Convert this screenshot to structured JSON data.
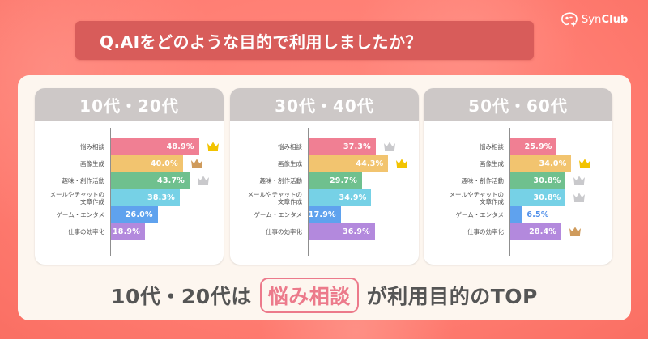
{
  "brand": {
    "logo_text_light": "Syn",
    "logo_text_bold": "Club"
  },
  "title": "Q.AIをどのような目的で利用しましたか？",
  "colors": {
    "background": "#ff7d72",
    "banner": "#d85c5a",
    "card": "#fdf6ef",
    "panel_header": "#cdc8c7",
    "highlight": "#ec7a8b",
    "crown_gold": "#f2c300",
    "crown_silver": "#c9c9cc",
    "crown_bronze": "#cf9b5c"
  },
  "panels": [
    {
      "title": "10代・20代",
      "rows": [
        {
          "label": [
            "悩み相談"
          ],
          "value": 48.9,
          "value_label": "48.9%",
          "color": "#f07f93",
          "crown": "gold"
        },
        {
          "label": [
            "画像生成"
          ],
          "value": 40.0,
          "value_label": "40.0%",
          "color": "#f2c46f",
          "crown": "bronze"
        },
        {
          "label": [
            "趣味・創作活動"
          ],
          "value": 43.7,
          "value_label": "43.7%",
          "color": "#6fc08e",
          "crown": "silver"
        },
        {
          "label": [
            "メールやチャットの",
            "文章作成"
          ],
          "value": 38.3,
          "value_label": "38.3%",
          "color": "#76d1e6",
          "crown": null
        },
        {
          "label": [
            "ゲーム・エンタメ"
          ],
          "value": 26.0,
          "value_label": "26.0%",
          "color": "#5fa2ee",
          "crown": null
        },
        {
          "label": [
            "仕事の効率化"
          ],
          "value": 18.9,
          "value_label": "18.9%",
          "color": "#b389dd",
          "crown": null
        }
      ]
    },
    {
      "title": "30代・40代",
      "rows": [
        {
          "label": [
            "悩み相談"
          ],
          "value": 37.3,
          "value_label": "37.3%",
          "color": "#f07f93",
          "crown": "silver"
        },
        {
          "label": [
            "画像生成"
          ],
          "value": 44.3,
          "value_label": "44.3%",
          "color": "#f2c46f",
          "crown": "gold"
        },
        {
          "label": [
            "趣味・創作活動"
          ],
          "value": 29.7,
          "value_label": "29.7%",
          "color": "#6fc08e",
          "crown": null
        },
        {
          "label": [
            "メールやチャットの",
            "文章作成"
          ],
          "value": 34.9,
          "value_label": "34.9%",
          "color": "#76d1e6",
          "crown": null
        },
        {
          "label": [
            "ゲーム・エンタメ"
          ],
          "value": 17.9,
          "value_label": "17.9%",
          "color": "#5fa2ee",
          "crown": null
        },
        {
          "label": [
            "仕事の効率化"
          ],
          "value": 36.9,
          "value_label": "36.9%",
          "color": "#b389dd",
          "crown": null
        }
      ]
    },
    {
      "title": "50代・60代",
      "rows": [
        {
          "label": [
            "悩み相談"
          ],
          "value": 25.9,
          "value_label": "25.9%",
          "color": "#f07f93",
          "crown": null
        },
        {
          "label": [
            "画像生成"
          ],
          "value": 34.0,
          "value_label": "34.0%",
          "color": "#f2c46f",
          "crown": "gold"
        },
        {
          "label": [
            "趣味・創作活動"
          ],
          "value": 30.8,
          "value_label": "30.8%",
          "color": "#6fc08e",
          "crown": "silver"
        },
        {
          "label": [
            "メールやチャットの",
            "文章作成"
          ],
          "value": 30.8,
          "value_label": "30.8%",
          "color": "#76d1e6",
          "crown": "silver"
        },
        {
          "label": [
            "ゲーム・エンタメ"
          ],
          "value": 6.5,
          "value_label": "6.5%",
          "color": "#5fa2ee",
          "crown": null,
          "label_outside": true
        },
        {
          "label": [
            "仕事の効率化"
          ],
          "value": 28.4,
          "value_label": "28.4%",
          "color": "#b389dd",
          "crown": "bronze"
        }
      ]
    }
  ],
  "caption": {
    "before": "10代・20代は",
    "highlight": "悩み相談",
    "after": "が利用目的のTOP"
  },
  "chart_data": [
    {
      "type": "bar",
      "orientation": "horizontal",
      "title": "10代・20代",
      "categories": [
        "悩み相談",
        "画像生成",
        "趣味・創作活動",
        "メールやチャットの文章作成",
        "ゲーム・エンタメ",
        "仕事の効率化"
      ],
      "values": [
        48.9,
        40.0,
        43.7,
        38.3,
        26.0,
        18.9
      ],
      "unit": "%",
      "annotations": {
        "gold": "悩み相談",
        "silver": "趣味・創作活動",
        "bronze": "画像生成"
      },
      "grid": false
    },
    {
      "type": "bar",
      "orientation": "horizontal",
      "title": "30代・40代",
      "categories": [
        "悩み相談",
        "画像生成",
        "趣味・創作活動",
        "メールやチャットの文章作成",
        "ゲーム・エンタメ",
        "仕事の効率化"
      ],
      "values": [
        37.3,
        44.3,
        29.7,
        34.9,
        17.9,
        36.9
      ],
      "unit": "%",
      "annotations": {
        "gold": "画像生成",
        "silver": "悩み相談"
      },
      "grid": false
    },
    {
      "type": "bar",
      "orientation": "horizontal",
      "title": "50代・60代",
      "categories": [
        "悩み相談",
        "画像生成",
        "趣味・創作活動",
        "メールやチャットの文章作成",
        "ゲーム・エンタメ",
        "仕事の効率化"
      ],
      "values": [
        25.9,
        34.0,
        30.8,
        30.8,
        6.5,
        28.4
      ],
      "unit": "%",
      "annotations": {
        "gold": "画像生成",
        "silver": [
          "趣味・創作活動",
          "メールやチャットの文章作成"
        ],
        "bronze": "仕事の効率化"
      },
      "grid": false
    }
  ]
}
